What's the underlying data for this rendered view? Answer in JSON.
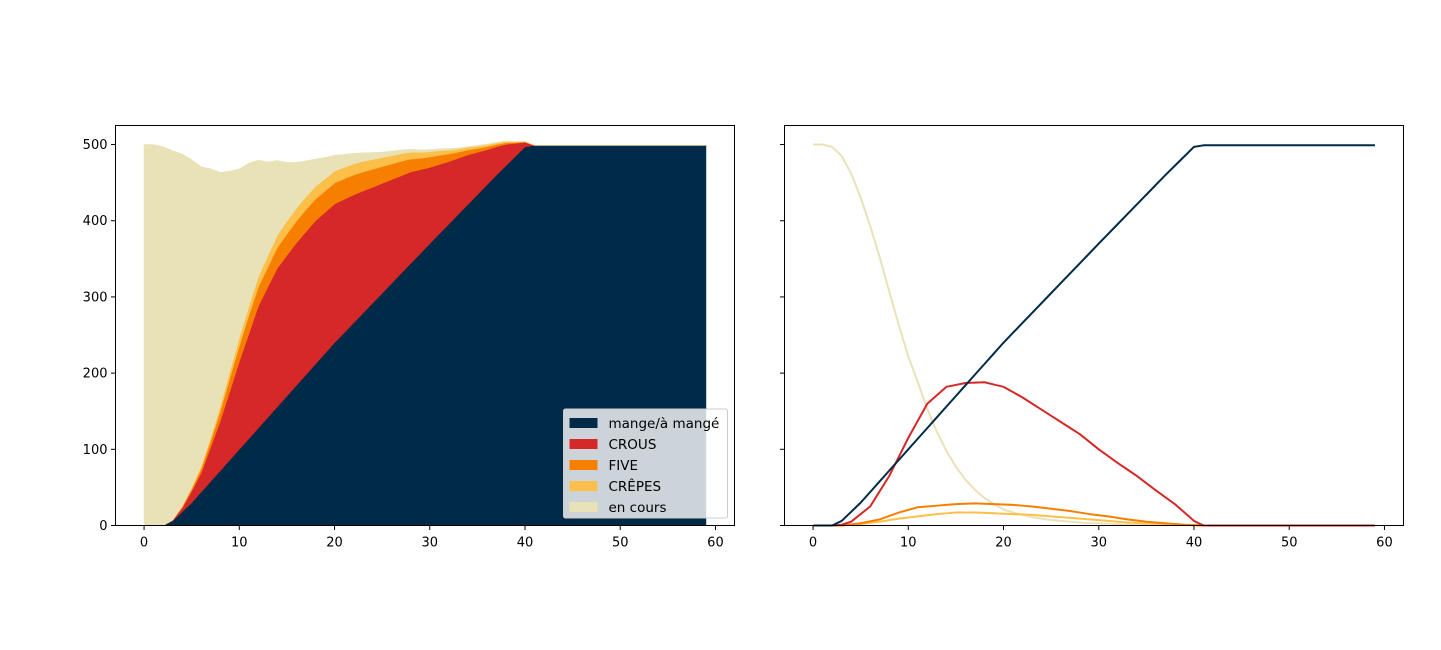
{
  "chart_data": [
    {
      "type": "area",
      "stacked": true,
      "x_range": [
        0,
        59
      ],
      "xlim": [
        -3,
        62
      ],
      "ylim": [
        0,
        525
      ],
      "xticks": [
        0,
        10,
        20,
        30,
        40,
        50,
        60
      ],
      "yticks": [
        0,
        100,
        200,
        300,
        400,
        500
      ],
      "grid": false,
      "legend": "lower-right",
      "series_points": [
        {
          "name": "mange/à mangé",
          "color": "#002b48",
          "points": [
            [
              0,
              0
            ],
            [
              2,
              0
            ],
            [
              3,
              6
            ],
            [
              5,
              30
            ],
            [
              10,
              100
            ],
            [
              20,
              240
            ],
            [
              30,
              370
            ],
            [
              37,
              460
            ],
            [
              40,
              497
            ],
            [
              41,
              499
            ],
            [
              59,
              499
            ]
          ]
        },
        {
          "name": "CROUS",
          "color": "#d62828",
          "points": [
            [
              0,
              0
            ],
            [
              2,
              0
            ],
            [
              3,
              1
            ],
            [
              4,
              5
            ],
            [
              6,
              25
            ],
            [
              8,
              65
            ],
            [
              10,
              115
            ],
            [
              12,
              160
            ],
            [
              14,
              182
            ],
            [
              16,
              187
            ],
            [
              18,
              188
            ],
            [
              20,
              182
            ],
            [
              22,
              168
            ],
            [
              24,
              152
            ],
            [
              26,
              136
            ],
            [
              28,
              120
            ],
            [
              30,
              100
            ],
            [
              32,
              82
            ],
            [
              34,
              65
            ],
            [
              36,
              46
            ],
            [
              38,
              28
            ],
            [
              40,
              6
            ],
            [
              41,
              0
            ],
            [
              59,
              0
            ]
          ]
        },
        {
          "name": "FIVE",
          "color": "#f77f00",
          "points": [
            [
              0,
              0
            ],
            [
              3,
              0
            ],
            [
              5,
              3
            ],
            [
              7,
              8
            ],
            [
              9,
              17
            ],
            [
              11,
              24
            ],
            [
              13,
              26
            ],
            [
              15,
              28
            ],
            [
              17,
              29
            ],
            [
              19,
              28
            ],
            [
              21,
              27
            ],
            [
              23,
              25
            ],
            [
              25,
              22
            ],
            [
              27,
              19
            ],
            [
              29,
              15
            ],
            [
              31,
              12
            ],
            [
              33,
              8
            ],
            [
              35,
              5
            ],
            [
              37,
              3
            ],
            [
              39,
              1
            ],
            [
              41,
              0
            ],
            [
              59,
              0
            ]
          ]
        },
        {
          "name": "CRÊPES",
          "color": "#fcbf49",
          "points": [
            [
              0,
              0
            ],
            [
              3,
              0
            ],
            [
              5,
              2
            ],
            [
              7,
              5
            ],
            [
              9,
              9
            ],
            [
              11,
              12
            ],
            [
              13,
              15
            ],
            [
              15,
              17
            ],
            [
              17,
              17
            ],
            [
              19,
              16
            ],
            [
              21,
              15
            ],
            [
              23,
              14
            ],
            [
              25,
              12
            ],
            [
              27,
              10
            ],
            [
              29,
              8
            ],
            [
              31,
              6
            ],
            [
              33,
              4
            ],
            [
              35,
              3
            ],
            [
              37,
              2
            ],
            [
              39,
              1
            ],
            [
              41,
              0
            ],
            [
              59,
              0
            ]
          ]
        },
        {
          "name": "en cours",
          "color": "#eae2b7",
          "points": [
            [
              0,
              500
            ],
            [
              1,
              500
            ],
            [
              2,
              497
            ],
            [
              3,
              485
            ],
            [
              4,
              462
            ],
            [
              5,
              430
            ],
            [
              6,
              393
            ],
            [
              7,
              352
            ],
            [
              8,
              307
            ],
            [
              9,
              263
            ],
            [
              10,
              222
            ],
            [
              11,
              188
            ],
            [
              12,
              153
            ],
            [
              13,
              123
            ],
            [
              14,
              98
            ],
            [
              15,
              77
            ],
            [
              16,
              60
            ],
            [
              17,
              47
            ],
            [
              18,
              36
            ],
            [
              19,
              28
            ],
            [
              20,
              21
            ],
            [
              21,
              17
            ],
            [
              22,
              14
            ],
            [
              23,
              11
            ],
            [
              24,
              9
            ],
            [
              25,
              7
            ],
            [
              26,
              6
            ],
            [
              27,
              5
            ],
            [
              28,
              4
            ],
            [
              29,
              3
            ],
            [
              30,
              3
            ],
            [
              32,
              2
            ],
            [
              34,
              1
            ],
            [
              36,
              1
            ],
            [
              38,
              1
            ],
            [
              40,
              0
            ],
            [
              59,
              0
            ]
          ]
        }
      ]
    },
    {
      "type": "line",
      "x_range": [
        0,
        59
      ],
      "xlim": [
        -3,
        62
      ],
      "ylim": [
        0,
        525
      ],
      "xticks": [
        0,
        10,
        20,
        30,
        40,
        50,
        60
      ],
      "yticks": [
        0,
        100,
        200,
        300,
        400,
        500
      ],
      "grid": false,
      "legend": "none",
      "shared_series_from": 0
    }
  ]
}
